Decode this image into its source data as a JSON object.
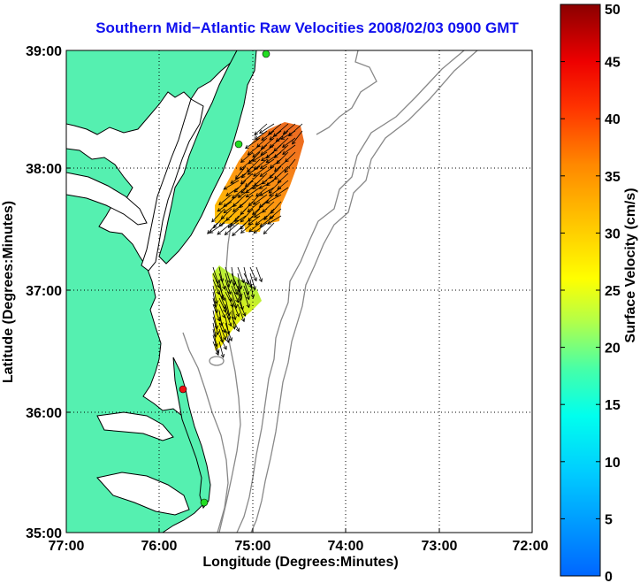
{
  "title": "Southern Mid−Atlantic Raw Velocities 2008/02/03 0900 GMT",
  "axes": {
    "xlabel": "Longitude (Degrees:Minutes)",
    "ylabel": "Latitude (Degrees:Minutes)",
    "x_ticks": [
      "77:00",
      "76:00",
      "75:00",
      "74:00",
      "73:00",
      "72:00"
    ],
    "y_ticks": [
      "39:00",
      "38:00",
      "37:00",
      "36:00",
      "35:00"
    ]
  },
  "colorbar": {
    "label": "Surface Velocity (cm/s)",
    "ticks": [
      "50",
      "45",
      "40",
      "35",
      "30",
      "25",
      "20",
      "15",
      "10",
      "5",
      "0"
    ],
    "min": 0,
    "max": 50
  },
  "colors": {
    "land": "#55f0b0",
    "coast": "#000000",
    "bathymetry": "#888888",
    "grid": "#000000",
    "station_green": "#22dd22",
    "station_red": "#ee1111"
  },
  "map_extent": {
    "lon": [
      -77,
      -72
    ],
    "lat": [
      35,
      39
    ]
  },
  "stations": [
    {
      "color": "green",
      "lat": 38.93,
      "lon": -75.13
    },
    {
      "color": "green",
      "lat": 38.21,
      "lon": -75.15
    },
    {
      "color": "red",
      "lat": 36.19,
      "lon": -75.74
    },
    {
      "color": "green",
      "lat": 35.26,
      "lon": -75.51
    }
  ]
}
